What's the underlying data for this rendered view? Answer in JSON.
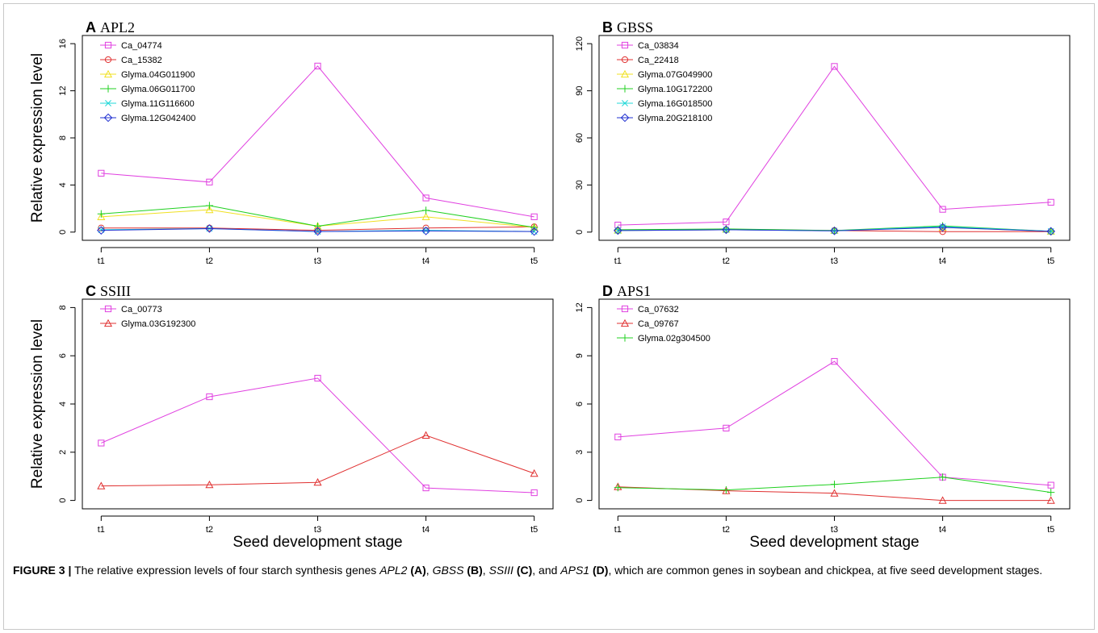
{
  "chart_data": [
    {
      "type": "line",
      "panel_letter": "A",
      "panel_gene": "APL2",
      "ylabel": "Relative expression level",
      "xlabel": "",
      "categories": [
        "t1",
        "t2",
        "t3",
        "t4",
        "t5"
      ],
      "ylim": [
        0,
        16
      ],
      "yticks": [
        0,
        4,
        8,
        12,
        16
      ],
      "grid": false,
      "legend_position": "top-left",
      "series": [
        {
          "name": "Ca_04774",
          "color": "#e040e0",
          "marker": "square",
          "values": [
            5.0,
            4.25,
            14.1,
            2.9,
            1.3
          ]
        },
        {
          "name": "Ca_15382",
          "color": "#e03030",
          "marker": "circle",
          "values": [
            0.35,
            0.35,
            0.15,
            0.35,
            0.45
          ]
        },
        {
          "name": "Glyma.04G011900",
          "color": "#f0e020",
          "marker": "triangle",
          "values": [
            1.3,
            1.9,
            0.5,
            1.3,
            0.4
          ]
        },
        {
          "name": "Glyma.06G011700",
          "color": "#20d020",
          "marker": "plus",
          "values": [
            1.55,
            2.25,
            0.5,
            1.85,
            0.4
          ]
        },
        {
          "name": "Glyma.11G116600",
          "color": "#20d8d8",
          "marker": "cross",
          "values": [
            0.2,
            0.3,
            0.05,
            0.15,
            0.05
          ]
        },
        {
          "name": "Glyma.12G042400",
          "color": "#2030d0",
          "marker": "diamond",
          "values": [
            0.15,
            0.3,
            0.05,
            0.1,
            0.05
          ]
        }
      ]
    },
    {
      "type": "line",
      "panel_letter": "B",
      "panel_gene": "GBSS",
      "ylabel": "",
      "xlabel": "",
      "categories": [
        "t1",
        "t2",
        "t3",
        "t4",
        "t5"
      ],
      "ylim": [
        0,
        120
      ],
      "yticks": [
        0,
        30,
        60,
        90,
        120
      ],
      "grid": false,
      "legend_position": "top-left",
      "series": [
        {
          "name": "Ca_03834",
          "color": "#e040e0",
          "marker": "square",
          "values": [
            4.5,
            6.5,
            105.5,
            14.5,
            19.0
          ]
        },
        {
          "name": "Ca_22418",
          "color": "#e03030",
          "marker": "circle",
          "values": [
            1.0,
            1.5,
            1.0,
            0.3,
            0.3
          ]
        },
        {
          "name": "Glyma.07G049900",
          "color": "#f0e020",
          "marker": "triangle",
          "values": [
            1.2,
            1.8,
            1.0,
            3.0,
            0.5
          ]
        },
        {
          "name": "Glyma.10G172200",
          "color": "#20d020",
          "marker": "plus",
          "values": [
            1.5,
            2.0,
            1.0,
            4.0,
            0.5
          ]
        },
        {
          "name": "Glyma.16G018500",
          "color": "#20d8d8",
          "marker": "cross",
          "values": [
            1.0,
            1.5,
            0.8,
            3.5,
            0.5
          ]
        },
        {
          "name": "Glyma.20G218100",
          "color": "#2030d0",
          "marker": "diamond",
          "values": [
            1.0,
            1.5,
            0.8,
            3.0,
            0.5
          ]
        }
      ]
    },
    {
      "type": "line",
      "panel_letter": "C",
      "panel_gene": "SSIII",
      "ylabel": "Relative expression level",
      "xlabel": "Seed development stage",
      "categories": [
        "t1",
        "t2",
        "t3",
        "t4",
        "t5"
      ],
      "ylim": [
        0,
        8
      ],
      "yticks": [
        0,
        2,
        4,
        6,
        8
      ],
      "grid": false,
      "legend_position": "top-left",
      "series": [
        {
          "name": "Ca_00773",
          "color": "#e040e0",
          "marker": "square",
          "values": [
            2.38,
            4.3,
            5.07,
            0.52,
            0.32
          ]
        },
        {
          "name": "Glyma.03G192300",
          "color": "#e03030",
          "marker": "triangle",
          "values": [
            0.6,
            0.65,
            0.75,
            2.7,
            1.12
          ]
        }
      ]
    },
    {
      "type": "line",
      "panel_letter": "D",
      "panel_gene": "APS1",
      "ylabel": "",
      "xlabel": "Seed development stage",
      "categories": [
        "t1",
        "t2",
        "t3",
        "t4",
        "t5"
      ],
      "ylim": [
        0,
        12
      ],
      "yticks": [
        0,
        3,
        6,
        9,
        12
      ],
      "grid": false,
      "legend_position": "top-left",
      "series": [
        {
          "name": "Ca_07632",
          "color": "#e040e0",
          "marker": "square",
          "values": [
            3.95,
            4.5,
            8.65,
            1.45,
            0.95
          ]
        },
        {
          "name": "Ca_09767",
          "color": "#e03030",
          "marker": "triangle",
          "values": [
            0.85,
            0.6,
            0.45,
            0.0,
            0.0
          ]
        },
        {
          "name": "Glyma.02g304500",
          "color": "#20d020",
          "marker": "plus",
          "values": [
            0.8,
            0.65,
            1.0,
            1.45,
            0.5
          ]
        }
      ]
    }
  ],
  "caption": {
    "label": "FIGURE 3 |",
    "text_1": " The relative expression levels of four starch synthesis genes ",
    "gene_a": "APL2",
    "ref_a": "(A)",
    "sep_1": ", ",
    "gene_b": "GBSS",
    "ref_b": "(B)",
    "sep_2": ", ",
    "gene_c": "SSIII",
    "ref_c": "(C)",
    "sep_3": ", and ",
    "gene_d": "APS1",
    "ref_d": "(D)",
    "text_2": ", which are common genes in soybean and chickpea, at five seed development stages."
  }
}
